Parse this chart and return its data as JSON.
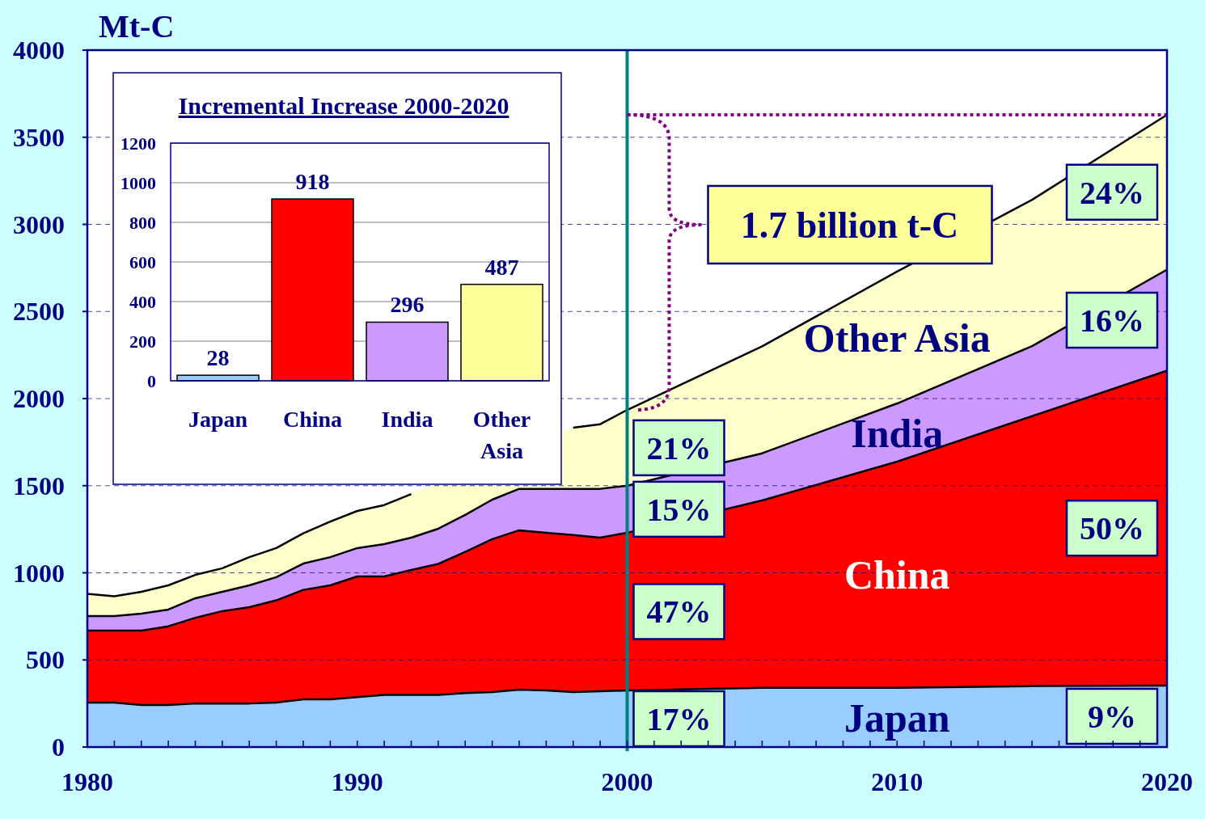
{
  "chart_data": [
    {
      "type": "area",
      "stacked": true,
      "ylabel": "Mt-C",
      "x": [
        1980,
        1981,
        1982,
        1983,
        1984,
        1985,
        1986,
        1987,
        1988,
        1989,
        1990,
        1991,
        1992,
        1993,
        1994,
        1995,
        1996,
        1997,
        1998,
        1999,
        2000,
        2005,
        2010,
        2015,
        2020
      ],
      "series": [
        {
          "name": "Japan",
          "color": "#99ccff",
          "values": [
            255,
            255,
            241,
            241,
            250,
            250,
            250,
            255,
            274,
            274,
            287,
            299,
            299,
            299,
            310,
            316,
            329,
            325,
            316,
            320,
            325,
            340,
            340,
            350,
            353
          ]
        },
        {
          "name": "China",
          "color": "#ff0000",
          "values": [
            413,
            413,
            427,
            452,
            492,
            530,
            553,
            587,
            628,
            654,
            692,
            680,
            717,
            752,
            810,
            877,
            915,
            905,
            901,
            882,
            905,
            1075,
            1298,
            1549,
            1807
          ]
        },
        {
          "name": "India",
          "color": "#cc99ff",
          "values": [
            84,
            84,
            98,
            96,
            112,
            111,
            125,
            133,
            151,
            162,
            163,
            186,
            186,
            202,
            212,
            227,
            238,
            252,
            265,
            280,
            270,
            271,
            334,
            402,
            580
          ]
        },
        {
          "name": "Other Asia",
          "color": "#ffffcc",
          "values": [
            127,
            113,
            125,
            139,
            134,
            135,
            162,
            167,
            174,
            204,
            213,
            224,
            250,
            null,
            null,
            null,
            null,
            null,
            351,
            371,
            435,
            614,
            757,
            840,
            889
          ]
        }
      ],
      "xlim": [
        1980,
        2020
      ],
      "ylim": [
        0,
        4000
      ],
      "xticks": [
        1980,
        {
          "value": 1981,
          "label": null
        },
        {
          "value": 1982,
          "label": null
        },
        {
          "value": 1983,
          "label": null
        },
        {
          "value": 1984,
          "label": null
        },
        {
          "value": 1985,
          "label": null
        },
        {
          "value": 1986,
          "label": null
        },
        {
          "value": 1987,
          "label": null
        },
        {
          "value": 1988,
          "label": null
        },
        {
          "value": 1989,
          "label": null
        },
        1990,
        {
          "value": 1991,
          "label": null
        },
        {
          "value": 1992,
          "label": null
        },
        {
          "value": 1993,
          "label": null
        },
        {
          "value": 1994,
          "label": null
        },
        {
          "value": 1995,
          "label": null
        },
        {
          "value": 1996,
          "label": null
        },
        {
          "value": 1997,
          "label": null
        },
        {
          "value": 1998,
          "label": null
        },
        {
          "value": 1999,
          "label": null
        },
        2000,
        {
          "value": 2001,
          "label": null
        },
        {
          "value": 2002,
          "label": null
        },
        {
          "value": 2003,
          "label": null
        },
        {
          "value": 2004,
          "label": null
        },
        {
          "value": 2005,
          "label": null
        },
        {
          "value": 2006,
          "label": null
        },
        {
          "value": 2007,
          "label": null
        },
        {
          "value": 2008,
          "label": null
        },
        {
          "value": 2009,
          "label": null
        },
        2010,
        {
          "value": 2011,
          "label": null
        },
        {
          "value": 2012,
          "label": null
        },
        {
          "value": 2013,
          "label": null
        },
        {
          "value": 2014,
          "label": null
        },
        {
          "value": 2015,
          "label": null
        },
        {
          "value": 2016,
          "label": null
        },
        {
          "value": 2017,
          "label": null
        },
        {
          "value": 2018,
          "label": null
        },
        {
          "value": 2019,
          "label": null
        },
        2020
      ],
      "yticks": [
        0,
        500,
        1000,
        1500,
        2000,
        2500,
        3000,
        3500,
        4000
      ],
      "grid": "y",
      "ref_lines": [
        {
          "axis": "x",
          "value": 2000,
          "color": "#008080"
        },
        {
          "axis": "y",
          "value": 3629,
          "color": "#800080",
          "line_style": "dotted"
        }
      ],
      "annotations": [
        "17%",
        "47%",
        "15%",
        "21%",
        "9%",
        "50%",
        "16%",
        "24%",
        {
          "text": "1.7 billion t-C",
          "x": 2000,
          "y": 3629
        }
      ]
    },
    {
      "type": "bar",
      "title": "Incremental Increase 2000-2020",
      "categories": [
        "Japan",
        "China",
        "India",
        "Other Asia"
      ],
      "values": [
        28,
        918,
        296,
        487
      ],
      "colors": [
        "#99ccff",
        "#ff0000",
        "#cc99ff",
        "#ffff99"
      ],
      "ylim": [
        0,
        1200
      ],
      "yticks": [
        0,
        200,
        400,
        600,
        800,
        1000,
        1200
      ],
      "grid": "y",
      "data_labels": true
    }
  ]
}
